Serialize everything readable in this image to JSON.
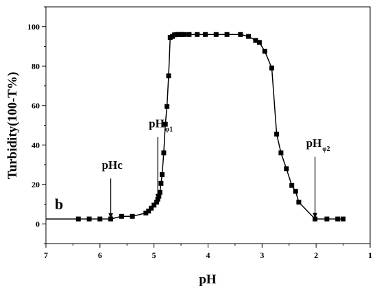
{
  "chart_data": {
    "type": "line",
    "title": "",
    "panel_label": "b",
    "xlabel": "pH",
    "ylabel": "Turbidity(100-T%)",
    "xlim": [
      7,
      1
    ],
    "ylim": [
      -10,
      110
    ],
    "x_reversed": true,
    "x_ticks": [
      "7",
      "6",
      "5",
      "4",
      "3",
      "2",
      "1"
    ],
    "y_ticks": [
      "0",
      "20",
      "40",
      "60",
      "80",
      "100"
    ],
    "grid": false,
    "line_start_x": 7.0,
    "series": [
      {
        "x": [
          6.4,
          6.2,
          6.0,
          5.8,
          5.6,
          5.4,
          5.15,
          5.1,
          5.05,
          5.0,
          4.95,
          4.93,
          4.91,
          4.89,
          4.87,
          4.85,
          4.82,
          4.79,
          4.76,
          4.73,
          4.7,
          4.66,
          4.62,
          4.58,
          4.55,
          4.52,
          4.48,
          4.44,
          4.35,
          4.2,
          4.05,
          3.85,
          3.65,
          3.4,
          3.25,
          3.12,
          3.05,
          2.95,
          2.82,
          2.73,
          2.65,
          2.55,
          2.45,
          2.38,
          2.32,
          2.02,
          1.8,
          1.6,
          1.5
        ],
        "y": [
          2.5,
          2.5,
          2.5,
          2.5,
          3.8,
          3.8,
          5.5,
          6.5,
          8.0,
          9.5,
          11.0,
          12.5,
          14.0,
          16.0,
          20.5,
          25.0,
          36.0,
          50.5,
          59.5,
          75.0,
          94.5,
          95.0,
          95.8,
          96.0,
          96.0,
          96.0,
          96.0,
          96.0,
          96.0,
          96.0,
          96.0,
          96.0,
          96.0,
          96.0,
          95.0,
          93.0,
          92.0,
          87.5,
          79.0,
          45.5,
          36.0,
          28.0,
          19.5,
          16.5,
          11.0,
          2.5,
          2.5,
          2.5,
          2.5
        ]
      }
    ],
    "annotations": [
      {
        "name": "pHc",
        "main": "pHc",
        "sub": "",
        "x": 5.8,
        "label_y": 28.0,
        "arrow_from_y": 23.0,
        "arrow_to_y": 2.8
      },
      {
        "name": "pH-phi1",
        "main": "pH",
        "sub": "φ1",
        "x": 4.93,
        "label_y": 49.0,
        "arrow_from_y": 44.0,
        "arrow_to_y": 12.5
      },
      {
        "name": "pH-phi2",
        "main": "pH",
        "sub": "φ2",
        "x": 2.02,
        "label_y": 39.0,
        "arrow_from_y": 34.0,
        "arrow_to_y": 3.0
      }
    ]
  }
}
